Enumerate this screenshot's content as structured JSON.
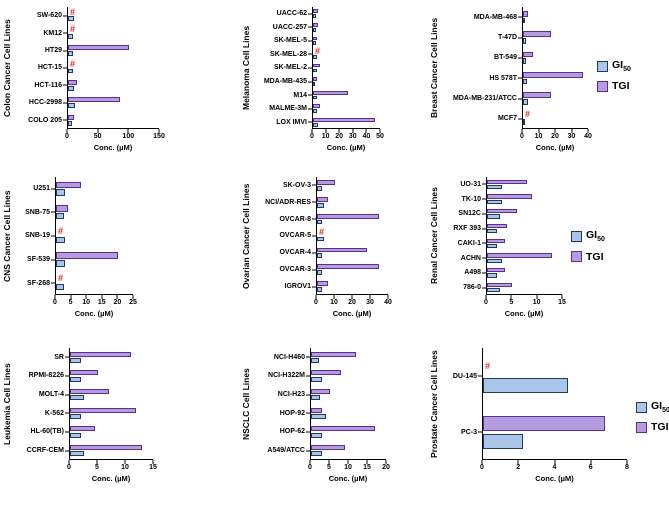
{
  "figure": {
    "background": "#ffffff",
    "censored_symbol": "#",
    "legend": {
      "gi50_base": "GI",
      "gi50_sub": "50",
      "tgi_label": "TGI"
    },
    "colors": {
      "gi50_fill": "#a9c6e8",
      "gi50_border": "#1f3864",
      "tgi_fill": "#b49ddf",
      "tgi_border": "#5b2f91",
      "censored": "#e02a1e",
      "axis": "#000000"
    }
  },
  "chart_data": [
    {
      "type": "bar",
      "panel_label": "Colon Cancer Cell Lines",
      "xlabel": "Conc. (µM)",
      "xlim": [
        0,
        150
      ],
      "ticks": [
        0,
        50,
        100,
        150
      ],
      "legend_visible": false,
      "categories": [
        "SW-620",
        "KM12",
        "HT29",
        "HCT-15",
        "HCT-116",
        "HCC-2998",
        "COLO 205"
      ],
      "series": [
        {
          "name": "GI50",
          "values": [
            10,
            8,
            8,
            8,
            10,
            12,
            6
          ]
        },
        {
          "name": "TGI",
          "values": [
            null,
            null,
            100,
            null,
            15,
            85,
            10
          ]
        }
      ]
    },
    {
      "type": "bar",
      "panel_label": "Melanoma Cell Lines",
      "xlabel": "Conc. (µM)",
      "xlim": [
        0,
        50
      ],
      "ticks": [
        0,
        10,
        20,
        30,
        40,
        50
      ],
      "legend_visible": false,
      "categories": [
        "UACC-62",
        "UACC-257",
        "SK-MEL-5",
        "SK-MEL-28",
        "SK-MEL-2",
        "MDA-MB-435",
        "M14",
        "MALME-3M",
        "LOX IMVI"
      ],
      "series": [
        {
          "name": "GI50",
          "values": [
            2,
            2,
            2,
            3,
            3,
            1.5,
            3,
            3,
            4
          ]
        },
        {
          "name": "TGI",
          "values": [
            4,
            4,
            3,
            null,
            5,
            3,
            26,
            5,
            46
          ]
        }
      ]
    },
    {
      "type": "bar",
      "panel_label": "Breast Cancer Cell Lines",
      "xlabel": "Conc. (µM)",
      "xlim": [
        0,
        40
      ],
      "ticks": [
        0,
        10,
        20,
        30,
        40
      ],
      "legend_visible": true,
      "categories": [
        "MDA-MB-468",
        "T-47D",
        "BT-549",
        "HS 578T",
        "MDA-MB-231/ATCC",
        "MCF7"
      ],
      "series": [
        {
          "name": "GI50",
          "values": [
            1.5,
            2,
            2,
            2.5,
            3,
            1.5
          ]
        },
        {
          "name": "TGI",
          "values": [
            3,
            17,
            6,
            37,
            17,
            null
          ]
        }
      ]
    },
    {
      "type": "bar",
      "panel_label": "CNS Cancer Cell Lines",
      "xlabel": "Conc. (µM)",
      "xlim": [
        0,
        25
      ],
      "ticks": [
        0,
        5,
        10,
        15,
        20,
        25
      ],
      "legend_visible": false,
      "categories": [
        "U251",
        "SNB-75",
        "SNB-19",
        "SF-539",
        "SF-268"
      ],
      "series": [
        {
          "name": "GI50",
          "values": [
            3,
            2.5,
            3,
            3,
            2.5
          ]
        },
        {
          "name": "TGI",
          "values": [
            8,
            4,
            null,
            20,
            null
          ]
        }
      ]
    },
    {
      "type": "bar",
      "panel_label": "Ovarian Cancer Cell Lines",
      "xlabel": "Conc. (µM)",
      "xlim": [
        0,
        40
      ],
      "ticks": [
        0,
        10,
        20,
        30,
        40
      ],
      "legend_visible": false,
      "categories": [
        "SK-OV-3",
        "NCI/ADR-RES",
        "OVCAR-8",
        "OVCAR-5",
        "OVCAR-4",
        "OVCAR-3",
        "IGROV1"
      ],
      "series": [
        {
          "name": "GI50",
          "values": [
            3,
            4,
            3,
            4,
            3,
            3,
            3
          ]
        },
        {
          "name": "TGI",
          "values": [
            10,
            6,
            35,
            null,
            28,
            35,
            6
          ]
        }
      ]
    },
    {
      "type": "bar",
      "panel_label": "Renal Cancer Cell Lines",
      "xlabel": "Conc. (µM)",
      "xlim": [
        0,
        15
      ],
      "ticks": [
        0,
        5,
        10,
        15
      ],
      "legend_visible": true,
      "categories": [
        "UO-31",
        "TK-10",
        "SN12C",
        "RXF 393",
        "CAKI-1",
        "ACHN",
        "A498",
        "786-0"
      ],
      "series": [
        {
          "name": "GI50",
          "values": [
            3,
            3,
            2.5,
            2,
            2,
            3,
            2,
            2.5
          ]
        },
        {
          "name": "TGI",
          "values": [
            8,
            9,
            6,
            4,
            3.5,
            13,
            3.5,
            5
          ]
        }
      ]
    },
    {
      "type": "bar",
      "panel_label": "Leukemia Cell Lines",
      "xlabel": "Conc. (µM)",
      "xlim": [
        0,
        15
      ],
      "ticks": [
        0,
        5,
        10,
        15
      ],
      "legend_visible": false,
      "categories": [
        "SR",
        "RPMI-8226",
        "MOLT-4",
        "K-562",
        "HL-60(TB)",
        "CCRF-CEM"
      ],
      "series": [
        {
          "name": "GI50",
          "values": [
            2,
            2,
            2.5,
            2,
            2,
            2.5
          ]
        },
        {
          "name": "TGI",
          "values": [
            11,
            5,
            7,
            12,
            4.5,
            13
          ]
        }
      ]
    },
    {
      "type": "bar",
      "panel_label": "NSCLC Cell Lines",
      "xlabel": "Conc. (µM)",
      "xlim": [
        0,
        20
      ],
      "ticks": [
        0,
        5,
        10,
        15,
        20
      ],
      "legend_visible": false,
      "categories": [
        "NCI-H460",
        "NCI-H322M",
        "NCI-H23",
        "HOP-92",
        "HOP-62",
        "A549/ATCC"
      ],
      "series": [
        {
          "name": "GI50",
          "values": [
            2,
            3,
            2.5,
            4,
            3,
            3
          ]
        },
        {
          "name": "TGI",
          "values": [
            12,
            8,
            5,
            3,
            17,
            9
          ]
        }
      ]
    },
    {
      "type": "bar",
      "panel_label": "Prostate Cancer Cell Lines",
      "xlabel": "Conc. (µM)",
      "xlim": [
        0,
        8
      ],
      "ticks": [
        0,
        2,
        4,
        6,
        8
      ],
      "legend_visible": true,
      "categories": [
        "DU-145",
        "PC-3"
      ],
      "series": [
        {
          "name": "GI50",
          "values": [
            4.7,
            2.2
          ]
        },
        {
          "name": "TGI",
          "values": [
            null,
            6.8
          ]
        }
      ]
    }
  ]
}
